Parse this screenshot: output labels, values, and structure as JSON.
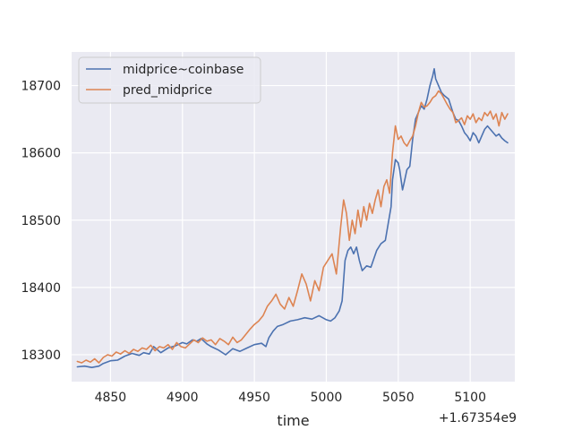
{
  "chart_data": {
    "type": "line",
    "title": "",
    "xlabel": "time",
    "ylabel": "",
    "x_offset_label": "+1.67354e9",
    "xlim": [
      4823,
      5131
    ],
    "ylim": [
      18260,
      18750
    ],
    "xticks": [
      4850,
      4900,
      4950,
      5000,
      5050,
      5100
    ],
    "xtick_labels": [
      "4850",
      "4900",
      "4950",
      "5000",
      "5050",
      "5100"
    ],
    "yticks": [
      18300,
      18400,
      18500,
      18600,
      18700
    ],
    "ytick_labels": [
      "18300",
      "18400",
      "18500",
      "18600",
      "18700"
    ],
    "grid": true,
    "legend_position": "upper-left",
    "series": [
      {
        "name": "midprice~coinbase",
        "color": "#4c72b0",
        "x": [
          4827,
          4832,
          4837,
          4842,
          4845,
          4850,
          4855,
          4860,
          4865,
          4870,
          4873,
          4877,
          4880,
          4885,
          4890,
          4895,
          4900,
          4903,
          4907,
          4910,
          4913,
          4917,
          4920,
          4925,
          4930,
          4935,
          4940,
          4945,
          4950,
          4955,
          4958,
          4960,
          4963,
          4966,
          4970,
          4975,
          4980,
          4985,
          4990,
          4995,
          5000,
          5003,
          5006,
          5009,
          5011,
          5013,
          5015,
          5017,
          5019,
          5021,
          5023,
          5025,
          5028,
          5031,
          5035,
          5038,
          5041,
          5043,
          5045,
          5046,
          5048,
          5050,
          5051,
          5052,
          5053,
          5054,
          5056,
          5058,
          5060,
          5062,
          5064,
          5066,
          5068,
          5070,
          5072,
          5074,
          5075,
          5076,
          5078,
          5080,
          5082,
          5085,
          5088,
          5090,
          5092,
          5094,
          5096,
          5098,
          5100,
          5102,
          5104,
          5106,
          5108,
          5110,
          5112,
          5114,
          5116,
          5118,
          5120,
          5122,
          5124,
          5126
        ],
        "y": [
          18282,
          18283,
          18281,
          18283,
          18287,
          18291,
          18292,
          18298,
          18302,
          18299,
          18303,
          18301,
          18312,
          18303,
          18310,
          18313,
          18318,
          18316,
          18322,
          18320,
          18324,
          18316,
          18312,
          18307,
          18300,
          18309,
          18305,
          18310,
          18315,
          18317,
          18312,
          18325,
          18335,
          18342,
          18345,
          18350,
          18352,
          18355,
          18353,
          18358,
          18352,
          18350,
          18355,
          18365,
          18380,
          18440,
          18455,
          18460,
          18450,
          18460,
          18440,
          18425,
          18432,
          18430,
          18455,
          18465,
          18470,
          18495,
          18520,
          18560,
          18590,
          18585,
          18575,
          18560,
          18545,
          18555,
          18575,
          18580,
          18620,
          18650,
          18660,
          18670,
          18665,
          18680,
          18700,
          18715,
          18725,
          18710,
          18700,
          18690,
          18685,
          18680,
          18660,
          18650,
          18648,
          18640,
          18630,
          18625,
          18618,
          18630,
          18625,
          18615,
          18625,
          18635,
          18640,
          18635,
          18630,
          18625,
          18628,
          18622,
          18618,
          18615
        ]
      },
      {
        "name": "pred_midprice",
        "color": "#dd8452",
        "x": [
          4827,
          4830,
          4833,
          4836,
          4839,
          4842,
          4845,
          4848,
          4851,
          4854,
          4857,
          4860,
          4863,
          4866,
          4869,
          4872,
          4875,
          4878,
          4881,
          4884,
          4887,
          4890,
          4893,
          4896,
          4899,
          4902,
          4905,
          4908,
          4911,
          4914,
          4917,
          4920,
          4923,
          4926,
          4929,
          4932,
          4935,
          4938,
          4941,
          4944,
          4947,
          4950,
          4953,
          4956,
          4959,
          4962,
          4965,
          4968,
          4971,
          4974,
          4977,
          4980,
          4983,
          4986,
          4989,
          4992,
          4995,
          4998,
          5001,
          5004,
          5007,
          5010,
          5012,
          5014,
          5016,
          5018,
          5020,
          5022,
          5024,
          5026,
          5028,
          5030,
          5032,
          5034,
          5036,
          5038,
          5040,
          5042,
          5044,
          5046,
          5048,
          5050,
          5052,
          5054,
          5056,
          5058,
          5060,
          5062,
          5064,
          5066,
          5068,
          5070,
          5072,
          5074,
          5076,
          5078,
          5080,
          5082,
          5084,
          5086,
          5088,
          5090,
          5092,
          5094,
          5096,
          5098,
          5100,
          5102,
          5104,
          5106,
          5108,
          5110,
          5112,
          5114,
          5116,
          5118,
          5120,
          5122,
          5124,
          5126
        ],
        "y": [
          18290,
          18288,
          18292,
          18289,
          18294,
          18288,
          18296,
          18300,
          18298,
          18304,
          18301,
          18306,
          18302,
          18308,
          18305,
          18310,
          18308,
          18314,
          18306,
          18312,
          18310,
          18315,
          18308,
          18318,
          18312,
          18310,
          18316,
          18322,
          18318,
          18325,
          18320,
          18322,
          18315,
          18324,
          18320,
          18315,
          18326,
          18318,
          18322,
          18330,
          18338,
          18345,
          18350,
          18358,
          18372,
          18380,
          18390,
          18375,
          18368,
          18385,
          18372,
          18395,
          18420,
          18405,
          18380,
          18410,
          18395,
          18430,
          18440,
          18450,
          18420,
          18490,
          18530,
          18510,
          18470,
          18500,
          18480,
          18515,
          18490,
          18520,
          18500,
          18525,
          18510,
          18530,
          18545,
          18520,
          18550,
          18560,
          18540,
          18600,
          18640,
          18620,
          18625,
          18615,
          18610,
          18618,
          18625,
          18640,
          18660,
          18675,
          18668,
          18670,
          18675,
          18682,
          18685,
          18692,
          18688,
          18680,
          18672,
          18665,
          18660,
          18645,
          18648,
          18652,
          18642,
          18655,
          18650,
          18658,
          18645,
          18652,
          18648,
          18660,
          18655,
          18662,
          18650,
          18658,
          18640,
          18660,
          18650,
          18658
        ]
      }
    ]
  }
}
